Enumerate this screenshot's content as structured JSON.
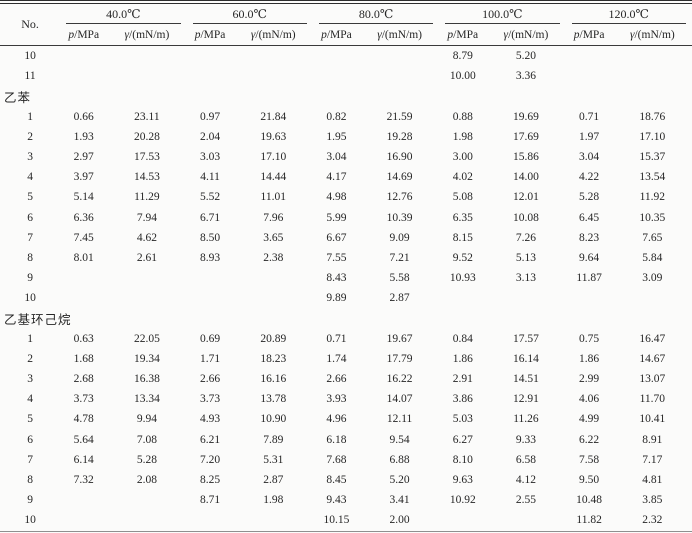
{
  "table": {
    "no_label": "No.",
    "temps": [
      "40.0℃",
      "60.0℃",
      "80.0℃",
      "100.0℃",
      "120.0℃"
    ],
    "p_label": {
      "symbol": "p",
      "unit": "/MPa"
    },
    "gamma_label": {
      "symbol": "γ",
      "unit": "/(mN/m)"
    },
    "sections": [
      {
        "title": null,
        "rows": [
          {
            "no": "10",
            "v": [
              "",
              "",
              "",
              "",
              "",
              "",
              "8.79",
              "5.20",
              "",
              ""
            ]
          },
          {
            "no": "11",
            "v": [
              "",
              "",
              "",
              "",
              "",
              "",
              "10.00",
              "3.36",
              "",
              ""
            ]
          }
        ]
      },
      {
        "title": "乙苯",
        "rows": [
          {
            "no": "1",
            "v": [
              "0.66",
              "23.11",
              "0.97",
              "21.84",
              "0.82",
              "21.59",
              "0.88",
              "19.69",
              "0.71",
              "18.76"
            ]
          },
          {
            "no": "2",
            "v": [
              "1.93",
              "20.28",
              "2.04",
              "19.63",
              "1.95",
              "19.28",
              "1.98",
              "17.69",
              "1.97",
              "17.10"
            ]
          },
          {
            "no": "3",
            "v": [
              "2.97",
              "17.53",
              "3.03",
              "17.10",
              "3.04",
              "16.90",
              "3.00",
              "15.86",
              "3.04",
              "15.37"
            ]
          },
          {
            "no": "4",
            "v": [
              "3.97",
              "14.53",
              "4.11",
              "14.44",
              "4.17",
              "14.69",
              "4.02",
              "14.00",
              "4.22",
              "13.54"
            ]
          },
          {
            "no": "5",
            "v": [
              "5.14",
              "11.29",
              "5.52",
              "11.01",
              "4.98",
              "12.76",
              "5.08",
              "12.01",
              "5.28",
              "11.92"
            ]
          },
          {
            "no": "6",
            "v": [
              "6.36",
              "7.94",
              "6.71",
              "7.96",
              "5.99",
              "10.39",
              "6.35",
              "10.08",
              "6.45",
              "10.35"
            ]
          },
          {
            "no": "7",
            "v": [
              "7.45",
              "4.62",
              "8.50",
              "3.65",
              "6.67",
              "9.09",
              "8.15",
              "7.26",
              "8.23",
              "7.65"
            ]
          },
          {
            "no": "8",
            "v": [
              "8.01",
              "2.61",
              "8.93",
              "2.38",
              "7.55",
              "7.21",
              "9.52",
              "5.13",
              "9.64",
              "5.84"
            ]
          },
          {
            "no": "9",
            "v": [
              "",
              "",
              "",
              "",
              "8.43",
              "5.58",
              "10.93",
              "3.13",
              "11.87",
              "3.09"
            ]
          },
          {
            "no": "10",
            "v": [
              "",
              "",
              "",
              "",
              "9.89",
              "2.87",
              "",
              "",
              "",
              ""
            ]
          }
        ]
      },
      {
        "title": "乙基环己烷",
        "rows": [
          {
            "no": "1",
            "v": [
              "0.63",
              "22.05",
              "0.69",
              "20.89",
              "0.71",
              "19.67",
              "0.84",
              "17.57",
              "0.75",
              "16.47"
            ]
          },
          {
            "no": "2",
            "v": [
              "1.68",
              "19.34",
              "1.71",
              "18.23",
              "1.74",
              "17.79",
              "1.86",
              "16.14",
              "1.86",
              "14.67"
            ]
          },
          {
            "no": "3",
            "v": [
              "2.68",
              "16.38",
              "2.66",
              "16.16",
              "2.66",
              "16.22",
              "2.91",
              "14.51",
              "2.99",
              "13.07"
            ]
          },
          {
            "no": "4",
            "v": [
              "3.73",
              "13.34",
              "3.73",
              "13.78",
              "3.93",
              "14.07",
              "3.86",
              "12.91",
              "4.06",
              "11.70"
            ]
          },
          {
            "no": "5",
            "v": [
              "4.78",
              "9.94",
              "4.93",
              "10.90",
              "4.96",
              "12.11",
              "5.03",
              "11.26",
              "4.99",
              "10.41"
            ]
          },
          {
            "no": "6",
            "v": [
              "5.64",
              "7.08",
              "6.21",
              "7.89",
              "6.18",
              "9.54",
              "6.27",
              "9.33",
              "6.22",
              "8.91"
            ]
          },
          {
            "no": "7",
            "v": [
              "6.14",
              "5.28",
              "7.20",
              "5.31",
              "7.68",
              "6.88",
              "8.10",
              "6.58",
              "7.58",
              "7.17"
            ]
          },
          {
            "no": "8",
            "v": [
              "7.32",
              "2.08",
              "8.25",
              "2.87",
              "8.45",
              "5.20",
              "9.63",
              "4.12",
              "9.50",
              "4.81"
            ]
          },
          {
            "no": "9",
            "v": [
              "",
              "",
              "8.71",
              "1.98",
              "9.43",
              "3.41",
              "10.92",
              "2.55",
              "10.48",
              "3.85"
            ]
          },
          {
            "no": "10",
            "v": [
              "",
              "",
              "",
              "",
              "10.15",
              "2.00",
              "",
              "",
              "11.82",
              "2.32"
            ]
          }
        ]
      }
    ]
  }
}
